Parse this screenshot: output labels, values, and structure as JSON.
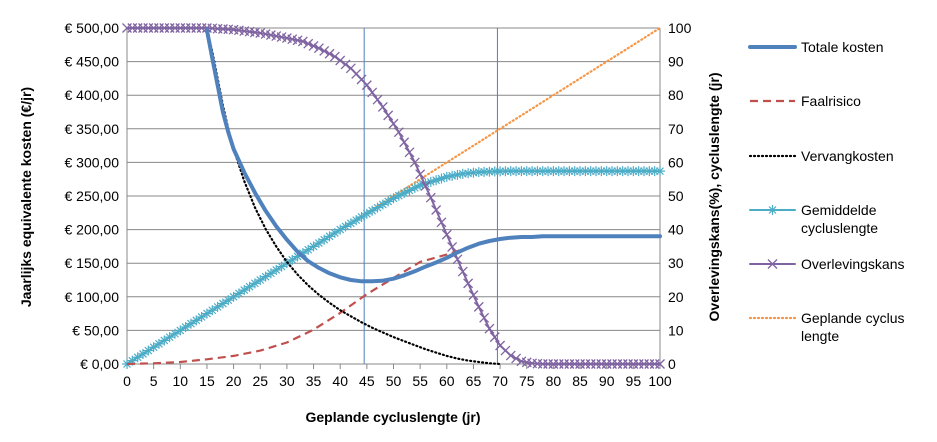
{
  "chart_data": {
    "type": "line",
    "xlabel": "Geplande cycluslengte (jr)",
    "ylabel_left": "Jaarlijks equivalente kosten (€/jr)",
    "ylabel_right": "Overlevingskans(%), cycluslengte (jr)",
    "xlim": [
      0,
      100
    ],
    "ylim_left": [
      0,
      500
    ],
    "ylim_right": [
      0,
      100
    ],
    "x_ticks": [
      "0",
      "5",
      "10",
      "15",
      "20",
      "25",
      "30",
      "35",
      "40",
      "45",
      "50",
      "55",
      "60",
      "65",
      "70",
      "75",
      "80",
      "85",
      "90",
      "95",
      "100"
    ],
    "y_left_ticks": [
      "€ 0,00",
      "€ 50,00",
      "€ 100,00",
      "€ 150,00",
      "€ 200,00",
      "€ 250,00",
      "€ 300,00",
      "€ 350,00",
      "€ 400,00",
      "€ 450,00",
      "€ 500,00"
    ],
    "y_right_ticks": [
      "0",
      "10",
      "20",
      "30",
      "40",
      "50",
      "60",
      "70",
      "80",
      "90",
      "100"
    ],
    "vertical_lines": [
      44.5,
      69.5
    ],
    "legend_position": "right",
    "series": [
      {
        "name": "Totale kosten",
        "axis": "left",
        "color": "#4F81BD",
        "style": "thick",
        "x": [
          15,
          16,
          17,
          18,
          19,
          20,
          22,
          24,
          26,
          28,
          30,
          32,
          34,
          36,
          38,
          40,
          42,
          44,
          46,
          48,
          50,
          52,
          54,
          56,
          58,
          60,
          62,
          64,
          66,
          68,
          70,
          72,
          74,
          76,
          78,
          80,
          85,
          90,
          95,
          100
        ],
        "y": [
          497,
          455,
          415,
          375,
          345,
          320,
          285,
          255,
          228,
          205,
          185,
          167,
          153,
          143,
          135,
          129,
          125,
          123,
          123,
          124,
          127,
          132,
          138,
          145,
          151,
          158,
          166,
          173,
          179,
          183,
          186,
          188,
          189,
          189,
          190,
          190,
          190,
          190,
          190,
          190
        ]
      },
      {
        "name": "Faalrisico",
        "axis": "left",
        "color": "#C0504D",
        "style": "dashed",
        "x": [
          0,
          5,
          10,
          15,
          20,
          25,
          30,
          35,
          40,
          45,
          50,
          55,
          60,
          62,
          64,
          66,
          68,
          70,
          72,
          74,
          76,
          78,
          80,
          85,
          90,
          95,
          100
        ],
        "y": [
          0,
          1,
          3,
          7,
          12,
          20,
          32,
          51,
          76,
          104,
          128,
          152,
          163,
          168,
          174,
          179,
          183,
          186,
          188,
          189,
          189,
          190,
          190,
          190,
          190,
          190,
          190
        ]
      },
      {
        "name": "Vervangkosten",
        "axis": "left",
        "color": "#000000",
        "style": "dotted",
        "x": [
          15,
          16,
          17,
          18,
          19,
          20,
          22,
          24,
          26,
          28,
          30,
          32,
          34,
          36,
          38,
          40,
          42,
          44,
          46,
          48,
          50,
          52,
          54,
          56,
          58,
          60,
          62,
          64,
          66,
          68,
          70
        ],
        "y": [
          497,
          465,
          425,
          385,
          350,
          320,
          272,
          233,
          201,
          175,
          152,
          133,
          117,
          103,
          91,
          80,
          71,
          62,
          54,
          47,
          40,
          34,
          28,
          22,
          17,
          12,
          8,
          5,
          3,
          1,
          0
        ]
      },
      {
        "name": "Gemiddelde cycluslengte",
        "axis": "right",
        "color": "#4BACC6",
        "style": "star-markers",
        "x": [
          0,
          5,
          10,
          15,
          20,
          25,
          30,
          35,
          40,
          45,
          50,
          55,
          60,
          63,
          66,
          69,
          72,
          75,
          80,
          85,
          90,
          95,
          100
        ],
        "y": [
          0,
          5,
          10,
          15,
          20,
          25,
          30,
          35,
          40,
          44.7,
          49.3,
          53.2,
          55.7,
          56.6,
          57.1,
          57.3,
          57.4,
          57.4,
          57.4,
          57.4,
          57.4,
          57.4,
          57.4
        ]
      },
      {
        "name": "Overlevingskans",
        "axis": "right",
        "color": "#8064A2",
        "style": "x-markers",
        "x": [
          0,
          5,
          10,
          15,
          20,
          25,
          30,
          33,
          36,
          39,
          42,
          45,
          48,
          51,
          54,
          57,
          60,
          63,
          66,
          68,
          70,
          72,
          74,
          76,
          78,
          80,
          85,
          90,
          95,
          100
        ],
        "y": [
          100,
          100,
          100,
          100,
          99.5,
          98.5,
          97,
          96,
          94,
          91.5,
          88,
          83,
          76.5,
          69,
          60,
          49.5,
          38.5,
          27.5,
          17,
          10.5,
          5.5,
          2.5,
          0.8,
          0.2,
          0,
          0,
          0,
          0,
          0,
          0
        ]
      },
      {
        "name": "Geplande cyclus lengte",
        "axis": "right",
        "color": "#F79646",
        "style": "dotted",
        "x": [
          0,
          100
        ],
        "y": [
          0,
          100
        ]
      }
    ]
  }
}
